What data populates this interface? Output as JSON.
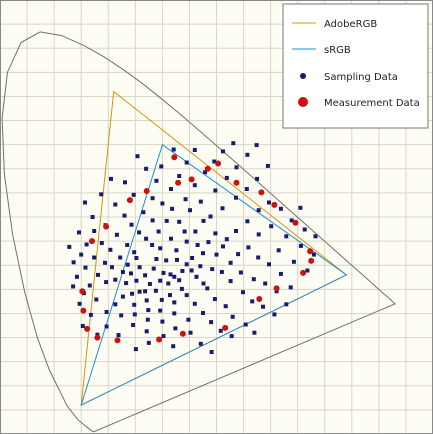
{
  "chart_data": {
    "type": "scatter",
    "title": "",
    "xlabel": "",
    "ylabel": "",
    "xlim": [
      0,
      0.8
    ],
    "ylim": [
      0,
      0.9
    ],
    "grid": true,
    "legend_position": "top-right",
    "colors": {
      "adobe_rgb": "#d4960a",
      "srgb": "#1f8fd0",
      "sampling": "#1a1a6e",
      "measurement": "#cc1111",
      "locus": "#707070",
      "plot_bg": "#fefdf3",
      "grid": "#d8d6c8"
    },
    "series": [
      {
        "name": "AdobeRGB",
        "kind": "polygon",
        "points": [
          [
            0.64,
            0.33
          ],
          [
            0.21,
            0.71
          ],
          [
            0.15,
            0.06
          ]
        ]
      },
      {
        "name": "sRGB",
        "kind": "polygon",
        "points": [
          [
            0.64,
            0.33
          ],
          [
            0.3,
            0.6
          ],
          [
            0.15,
            0.06
          ]
        ]
      },
      {
        "name": "Sampling Data",
        "kind": "scatter",
        "marker": "square"
      },
      {
        "name": "Measurement Data",
        "kind": "scatter",
        "marker": "circle",
        "points": [
          [
            0.322,
            0.574
          ],
          [
            0.403,
            0.561
          ],
          [
            0.437,
            0.521
          ],
          [
            0.483,
            0.501
          ],
          [
            0.507,
            0.475
          ],
          [
            0.546,
            0.438
          ],
          [
            0.573,
            0.379
          ],
          [
            0.575,
            0.359
          ],
          [
            0.56,
            0.334
          ],
          [
            0.511,
            0.302
          ],
          [
            0.479,
            0.28
          ],
          [
            0.416,
            0.22
          ],
          [
            0.338,
            0.208
          ],
          [
            0.294,
            0.196
          ],
          [
            0.217,
            0.194
          ],
          [
            0.18,
            0.2
          ],
          [
            0.161,
            0.218
          ],
          [
            0.154,
            0.256
          ],
          [
            0.152,
            0.296
          ],
          [
            0.17,
            0.4
          ],
          [
            0.196,
            0.43
          ],
          [
            0.24,
            0.485
          ],
          [
            0.271,
            0.504
          ],
          [
            0.329,
            0.521
          ],
          [
            0.354,
            0.528
          ],
          [
            0.384,
            0.55
          ]
        ]
      }
    ],
    "sampling_points": [
      [
        0.315,
        0.331
      ],
      [
        0.302,
        0.334
      ],
      [
        0.322,
        0.326
      ],
      [
        0.284,
        0.343
      ],
      [
        0.337,
        0.338
      ],
      [
        0.311,
        0.312
      ],
      [
        0.296,
        0.318
      ],
      [
        0.345,
        0.352
      ],
      [
        0.327,
        0.361
      ],
      [
        0.331,
        0.319
      ],
      [
        0.277,
        0.311
      ],
      [
        0.354,
        0.339
      ],
      [
        0.307,
        0.36
      ],
      [
        0.268,
        0.329
      ],
      [
        0.336,
        0.301
      ],
      [
        0.289,
        0.363
      ],
      [
        0.355,
        0.365
      ],
      [
        0.363,
        0.326
      ],
      [
        0.314,
        0.288
      ],
      [
        0.258,
        0.346
      ],
      [
        0.288,
        0.297
      ],
      [
        0.326,
        0.381
      ],
      [
        0.37,
        0.348
      ],
      [
        0.252,
        0.318
      ],
      [
        0.375,
        0.375
      ],
      [
        0.296,
        0.385
      ],
      [
        0.345,
        0.399
      ],
      [
        0.376,
        0.312
      ],
      [
        0.268,
        0.296
      ],
      [
        0.242,
        0.333
      ],
      [
        0.322,
        0.273
      ],
      [
        0.299,
        0.278
      ],
      [
        0.365,
        0.392
      ],
      [
        0.252,
        0.365
      ],
      [
        0.392,
        0.342
      ],
      [
        0.281,
        0.392
      ],
      [
        0.345,
        0.288
      ],
      [
        0.271,
        0.277
      ],
      [
        0.316,
        0.405
      ],
      [
        0.236,
        0.351
      ],
      [
        0.385,
        0.398
      ],
      [
        0.233,
        0.313
      ],
      [
        0.4,
        0.372
      ],
      [
        0.258,
        0.295
      ],
      [
        0.341,
        0.42
      ],
      [
        0.296,
        0.256
      ],
      [
        0.383,
        0.302
      ],
      [
        0.248,
        0.377
      ],
      [
        0.361,
        0.42
      ],
      [
        0.41,
        0.336
      ],
      [
        0.227,
        0.336
      ],
      [
        0.322,
        0.25
      ],
      [
        0.27,
        0.405
      ],
      [
        0.412,
        0.389
      ],
      [
        0.293,
        0.42
      ],
      [
        0.244,
        0.291
      ],
      [
        0.398,
        0.416
      ],
      [
        0.36,
        0.27
      ],
      [
        0.222,
        0.366
      ],
      [
        0.331,
        0.44
      ],
      [
        0.426,
        0.355
      ],
      [
        0.274,
        0.257
      ],
      [
        0.376,
        0.442
      ],
      [
        0.213,
        0.32
      ],
      [
        0.308,
        0.442
      ],
      [
        0.426,
        0.317
      ],
      [
        0.248,
        0.268
      ],
      [
        0.397,
        0.28
      ],
      [
        0.235,
        0.392
      ],
      [
        0.419,
        0.404
      ],
      [
        0.348,
        0.237
      ],
      [
        0.3,
        0.233
      ],
      [
        0.389,
        0.451
      ],
      [
        0.351,
        0.464
      ],
      [
        0.44,
        0.373
      ],
      [
        0.207,
        0.346
      ],
      [
        0.318,
        0.467
      ],
      [
        0.257,
        0.418
      ],
      [
        0.227,
        0.285
      ],
      [
        0.436,
        0.421
      ],
      [
        0.375,
        0.251
      ],
      [
        0.445,
        0.335
      ],
      [
        0.204,
        0.382
      ],
      [
        0.273,
        0.237
      ],
      [
        0.417,
        0.265
      ],
      [
        0.282,
        0.443
      ],
      [
        0.411,
        0.468
      ],
      [
        0.324,
        0.219
      ],
      [
        0.196,
        0.315
      ],
      [
        0.371,
        0.482
      ],
      [
        0.459,
        0.387
      ],
      [
        0.216,
        0.413
      ],
      [
        0.249,
        0.248
      ],
      [
        0.343,
        0.487
      ],
      [
        0.457,
        0.441
      ],
      [
        0.449,
        0.294
      ],
      [
        0.39,
        0.232
      ],
      [
        0.194,
        0.355
      ],
      [
        0.243,
        0.434
      ],
      [
        0.3,
        0.478
      ],
      [
        0.436,
        0.49
      ],
      [
        0.213,
        0.269
      ],
      [
        0.477,
        0.366
      ],
      [
        0.352,
        0.21
      ],
      [
        0.271,
        0.213
      ],
      [
        0.188,
        0.396
      ],
      [
        0.469,
        0.321
      ],
      [
        0.398,
        0.505
      ],
      [
        0.181,
        0.33
      ],
      [
        0.265,
        0.46
      ],
      [
        0.478,
        0.414
      ],
      [
        0.43,
        0.243
      ],
      [
        0.36,
        0.516
      ],
      [
        0.224,
        0.246
      ],
      [
        0.195,
        0.433
      ],
      [
        0.316,
        0.508
      ],
      [
        0.478,
        0.464
      ],
      [
        0.497,
        0.352
      ],
      [
        0.302,
        0.203
      ],
      [
        0.408,
        0.214
      ],
      [
        0.174,
        0.366
      ],
      [
        0.246,
        0.226
      ],
      [
        0.466,
        0.275
      ],
      [
        0.456,
        0.508
      ],
      [
        0.23,
        0.453
      ],
      [
        0.166,
        0.308
      ],
      [
        0.419,
        0.531
      ],
      [
        0.501,
        0.431
      ],
      [
        0.371,
        0.187
      ],
      [
        0.197,
        0.253
      ],
      [
        0.282,
        0.489
      ],
      [
        0.497,
        0.48
      ],
      [
        0.379,
        0.543
      ],
      [
        0.515,
        0.381
      ],
      [
        0.174,
        0.421
      ],
      [
        0.178,
        0.279
      ],
      [
        0.454,
        0.227
      ],
      [
        0.49,
        0.312
      ],
      [
        0.331,
        0.535
      ],
      [
        0.475,
        0.529
      ],
      [
        0.158,
        0.345
      ],
      [
        0.213,
        0.476
      ],
      [
        0.519,
        0.332
      ],
      [
        0.428,
        0.203
      ],
      [
        0.275,
        0.189
      ],
      [
        0.32,
        0.182
      ],
      [
        0.529,
        0.41
      ],
      [
        0.197,
        0.223
      ],
      [
        0.16,
        0.393
      ],
      [
        0.247,
        0.496
      ],
      [
        0.437,
        0.553
      ],
      [
        0.519,
        0.467
      ],
      [
        0.391,
        0.17
      ],
      [
        0.396,
        0.565
      ],
      [
        0.486,
        0.264
      ],
      [
        0.15,
        0.372
      ],
      [
        0.543,
        0.357
      ],
      [
        0.289,
        0.525
      ],
      [
        0.171,
        0.45
      ],
      [
        0.219,
        0.205
      ],
      [
        0.155,
        0.292
      ],
      [
        0.539,
        0.443
      ],
      [
        0.511,
        0.296
      ],
      [
        0.345,
        0.563
      ],
      [
        0.47,
        0.21
      ],
      [
        0.187,
        0.497
      ],
      [
        0.495,
        0.556
      ],
      [
        0.142,
        0.326
      ],
      [
        0.457,
        0.579
      ],
      [
        0.168,
        0.247
      ],
      [
        0.556,
        0.39
      ],
      [
        0.251,
        0.176
      ],
      [
        0.146,
        0.418
      ],
      [
        0.231,
        0.522
      ],
      [
        0.537,
        0.304
      ],
      [
        0.412,
        0.586
      ],
      [
        0.18,
        0.206
      ],
      [
        0.298,
        0.555
      ],
      [
        0.147,
        0.27
      ],
      [
        0.563,
        0.424
      ],
      [
        0.136,
        0.356
      ],
      [
        0.568,
        0.339
      ],
      [
        0.27,
        0.55
      ],
      [
        0.507,
        0.248
      ],
      [
        0.36,
        0.589
      ],
      [
        0.529,
        0.269
      ],
      [
        0.205,
        0.529
      ],
      [
        0.135,
        0.306
      ],
      [
        0.157,
        0.48
      ],
      [
        0.555,
        0.469
      ],
      [
        0.58,
        0.372
      ],
      [
        0.431,
        0.603
      ],
      [
        0.153,
        0.224
      ],
      [
        0.128,
        0.388
      ],
      [
        0.254,
        0.576
      ],
      [
        0.321,
        0.59
      ],
      [
        0.583,
        0.41
      ],
      [
        0.474,
        0.599
      ]
    ]
  }
}
